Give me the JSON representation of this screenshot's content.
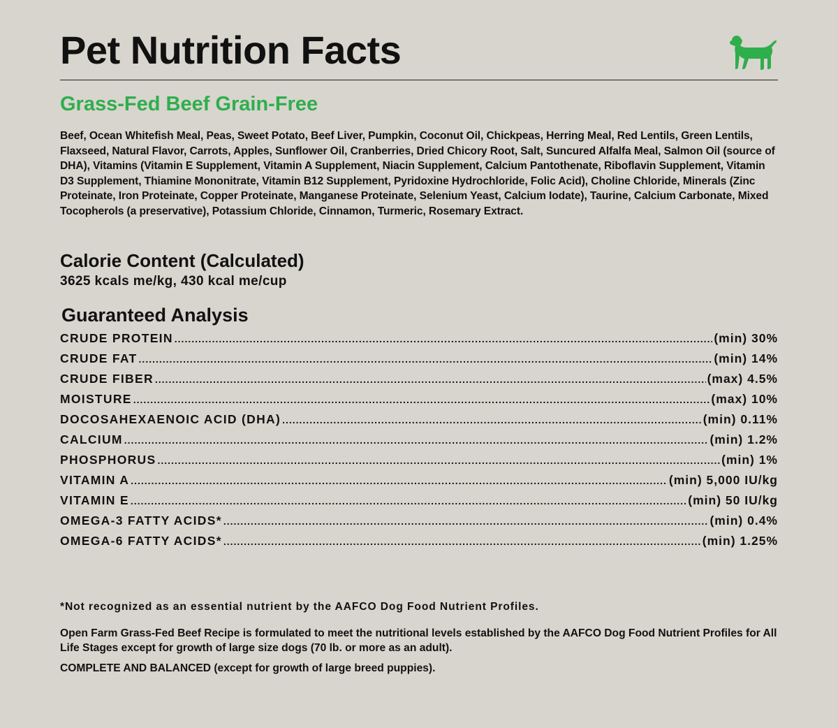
{
  "header": {
    "title": "Pet Nutrition Facts",
    "icon": "dog-icon",
    "icon_color": "#2fae4c"
  },
  "product": {
    "name": "Grass-Fed Beef Grain-Free",
    "accent_color": "#2fae4c"
  },
  "ingredients": "Beef, Ocean Whitefish Meal, Peas, Sweet Potato, Beef Liver, Pumpkin, Coconut Oil, Chickpeas, Herring Meal, Red Lentils, Green Lentils, Flaxseed, Natural Flavor, Carrots, Apples, Sunflower Oil, Cranberries, Dried Chicory Root, Salt, Suncured Alfalfa Meal, Salmon Oil (source of DHA), Vitamins (Vitamin E Supplement, Vitamin A Supplement, Niacin Supplement, Calcium Pantothenate, Riboflavin Supplement, Vitamin D3 Supplement, Thiamine Mononitrate, Vitamin B12 Supplement, Pyridoxine Hydrochloride, Folic Acid), Choline Chloride, Minerals (Zinc Proteinate, Iron Proteinate, Copper Proteinate, Manganese Proteinate, Selenium Yeast, Calcium Iodate), Taurine, Calcium Carbonate, Mixed Tocopherols (a preservative), Potassium Chloride, Cinnamon, Turmeric, Rosemary Extract.",
  "calorie": {
    "heading": "Calorie Content (Calculated)",
    "value": "3625 kcals me/kg, 430 kcal me/cup"
  },
  "analysis": {
    "heading": "Guaranteed Analysis",
    "rows": [
      {
        "name": "CRUDE PROTEIN",
        "value": "(min) 30%"
      },
      {
        "name": "CRUDE FAT",
        "value": "(min) 14%"
      },
      {
        "name": "CRUDE FIBER",
        "value": "(max) 4.5%"
      },
      {
        "name": "MOISTURE",
        "value": "(max) 10%"
      },
      {
        "name": "DOCOSAHEXAENOIC ACID (DHA)",
        "value": "(min) 0.11%"
      },
      {
        "name": "CALCIUM",
        "value": "(min) 1.2%"
      },
      {
        "name": "PHOSPHORUS",
        "value": "(min) 1%"
      },
      {
        "name": "VITAMIN A",
        "value": "(min) 5,000 IU/kg"
      },
      {
        "name": "VITAMIN E",
        "value": "(min) 50 IU/kg"
      },
      {
        "name": "OMEGA-3 FATTY ACIDS*",
        "value": "(min) 0.4%"
      },
      {
        "name": "OMEGA-6 FATTY ACIDS*",
        "value": "(min) 1.25%"
      }
    ]
  },
  "footer": {
    "footnote": "*Not recognized as an essential nutrient by the AAFCO Dog Food Nutrient Profiles.",
    "statement": "Open Farm Grass-Fed Beef Recipe is formulated to meet the nutritional levels established by the AAFCO Dog Food Nutrient Profiles for All Life Stages except for growth of large size dogs (70 lb. or more as an adult).",
    "complete": "COMPLETE AND BALANCED (except for growth of large breed puppies)."
  }
}
